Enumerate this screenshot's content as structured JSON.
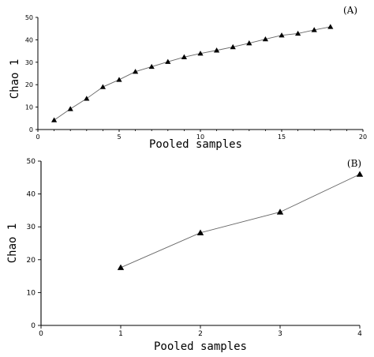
{
  "chart_data": [
    {
      "type": "line",
      "panel_label": "(A)",
      "xlabel": "Pooled samples",
      "ylabel": "Chao 1",
      "xlim": [
        0,
        20
      ],
      "ylim": [
        0,
        50
      ],
      "x_ticks": [
        "0",
        "5",
        "10",
        "15",
        "20"
      ],
      "y_ticks": [
        "0",
        "10",
        "20",
        "30",
        "40",
        "50"
      ],
      "x_minor_step": 1,
      "marker": "triangle",
      "line_color": "#666666",
      "marker_color": "#000000",
      "grid": false,
      "x": [
        1,
        2,
        3,
        4,
        5,
        6,
        7,
        8,
        9,
        10,
        11,
        12,
        13,
        14,
        15,
        16,
        17,
        18
      ],
      "y": [
        4.2,
        9.2,
        13.8,
        19.0,
        22.2,
        25.8,
        28.0,
        30.2,
        32.3,
        33.9,
        35.3,
        36.8,
        38.5,
        40.3,
        42.0,
        42.8,
        44.4,
        45.8
      ]
    },
    {
      "type": "line",
      "panel_label": "(B)",
      "xlabel": "Pooled samples",
      "ylabel": "Chao 1",
      "xlim": [
        0,
        4
      ],
      "ylim": [
        0,
        50
      ],
      "x_ticks": [
        "0",
        "1",
        "2",
        "3",
        "4"
      ],
      "y_ticks": [
        "0",
        "10",
        "20",
        "30",
        "40",
        "50"
      ],
      "marker": "triangle",
      "line_color": "#666666",
      "marker_color": "#000000",
      "grid": false,
      "x": [
        1,
        2,
        3,
        4
      ],
      "y": [
        17.6,
        28.2,
        34.5,
        46.0
      ]
    }
  ]
}
